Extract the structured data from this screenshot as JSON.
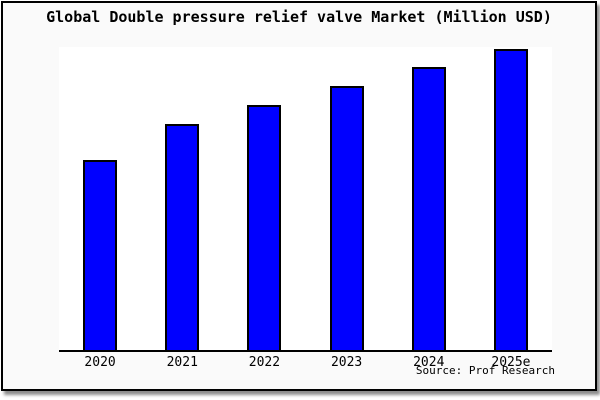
{
  "chart_data": {
    "type": "bar",
    "title": "Global Double pressure relief valve Market (Million USD)",
    "categories": [
      "2020",
      "2021",
      "2022",
      "2023",
      "2024",
      "2025e"
    ],
    "values": [
      63,
      75,
      81.5,
      87.8,
      94,
      100
    ],
    "value_scale_note": "no y-axis or value labels shown; values are relative bar heights with 2025e = 100",
    "xlabel": "",
    "ylabel": "",
    "legend": false,
    "grid": false,
    "y_axis_visible": false,
    "bar_color": "#0000ff",
    "bar_border_color": "#000000",
    "source": "Source: Prof Research"
  },
  "colors": {
    "frame_border": "#000000",
    "card_background": "#fafafa",
    "plot_background": "#ffffff",
    "text": "#000000"
  }
}
